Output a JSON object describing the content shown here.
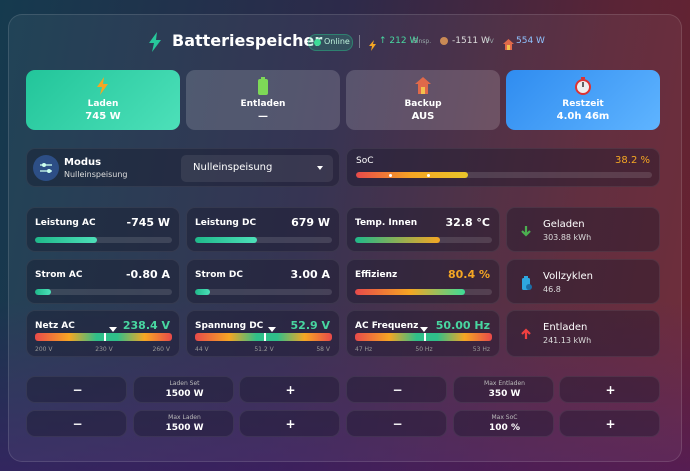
{
  "header": {
    "title": "Batteriespeicher",
    "status": "Online",
    "export": "↑ 212 W",
    "export_unit": "Einsp.",
    "pv": "-1511 W",
    "pv_unit": "PV",
    "home": "554 W"
  },
  "modes": [
    {
      "label": "Laden",
      "value": "745 W"
    },
    {
      "label": "Entladen",
      "value": "—"
    },
    {
      "label": "Backup",
      "value": "AUS"
    },
    {
      "label": "Restzeit",
      "value": "4.0h 46m"
    }
  ],
  "mode": {
    "label": "Modus",
    "value": "Nulleinspeisung",
    "select": "Nulleinspeisung"
  },
  "soc": {
    "label": "SoC",
    "value": "38.2 %"
  },
  "metrics": [
    {
      "label": "Leistung AC",
      "value": "-745 W"
    },
    {
      "label": "Leistung DC",
      "value": "679 W"
    },
    {
      "label": "Temp. Innen",
      "value": "32.8 °C"
    },
    {
      "label": "Strom AC",
      "value": "-0.80 A"
    },
    {
      "label": "Strom DC",
      "value": "3.00 A"
    },
    {
      "label": "Effizienz",
      "value": "80.4 %"
    },
    {
      "label": "Netz AC",
      "value": "238.4 V",
      "scale": [
        "200 V",
        "230 V",
        "260 V"
      ]
    },
    {
      "label": "Spannung DC",
      "value": "52.9 V",
      "scale": [
        "44 V",
        "51.2 V",
        "58 V"
      ]
    },
    {
      "label": "AC Frequenz",
      "value": "50.00 Hz",
      "scale": [
        "47 Hz",
        "50 Hz",
        "53 Hz"
      ]
    }
  ],
  "stats": [
    {
      "label": "Geladen",
      "value": "303.88 kWh"
    },
    {
      "label": "Vollzyklen",
      "value": "46.8"
    },
    {
      "label": "Entladen",
      "value": "241.13 kWh"
    }
  ],
  "controls": [
    {
      "minus": "−",
      "label": "Laden Set",
      "value": "1500 W",
      "plus": "+"
    },
    {
      "minus": "−",
      "label": "Max Entladen",
      "value": "350 W",
      "plus": "+"
    },
    {
      "minus": "−",
      "label": "Max Laden",
      "value": "1500 W",
      "plus": "+"
    },
    {
      "minus": "−",
      "label": "Max SoC",
      "value": "100 %",
      "plus": "+"
    }
  ]
}
